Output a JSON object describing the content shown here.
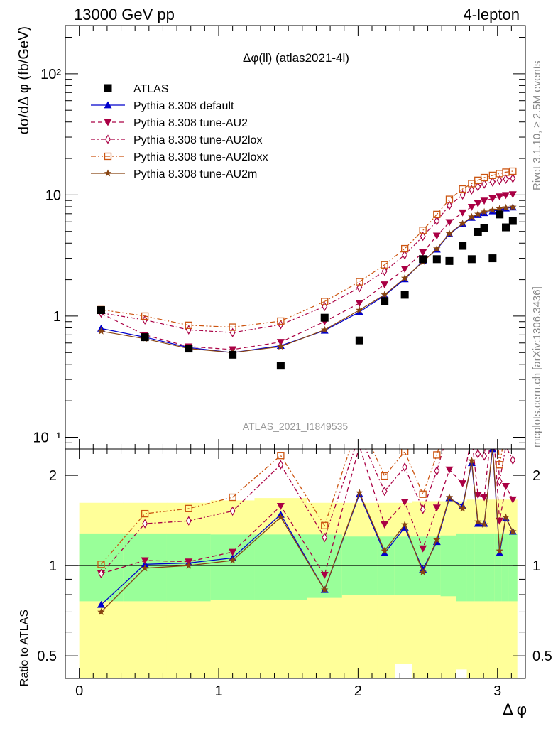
{
  "header": {
    "left": "13000 GeV pp",
    "right": "4-lepton"
  },
  "side_labels": {
    "rivet": "Rivet 3.1.10, ≥ 2.5M events",
    "mcplots": "mcplots.cern.ch [arXiv:1306.3436]"
  },
  "chart_data": [
    {
      "type": "line",
      "title": "Δφ(ll) (atlas2021-4l)",
      "watermark": "ATLAS_2021_I1849535",
      "ylabel": "dσ/dΔ φ (fb/GeV)",
      "xlabel": "Δ φ",
      "y_scale": "log",
      "xlim": [
        -0.1,
        3.2
      ],
      "ylim": [
        0.08,
        250
      ],
      "x_ticks": [
        0,
        1,
        2,
        3
      ],
      "y_tick_labels": [
        "10⁻¹",
        "1",
        "10",
        "10²"
      ],
      "y_tick_values": [
        0.1,
        1,
        10,
        100
      ],
      "legend_position": "top-left",
      "x": [
        0.157,
        0.471,
        0.785,
        1.1,
        1.445,
        1.76,
        2.01,
        2.19,
        2.335,
        2.465,
        2.565,
        2.655,
        2.75,
        2.815,
        2.86,
        2.905,
        2.965,
        3.015,
        3.06,
        3.11
      ],
      "data": {
        "name": "ATLAS",
        "values": [
          1.12,
          0.67,
          0.54,
          0.48,
          0.39,
          0.97,
          0.63,
          1.33,
          1.5,
          2.95,
          2.95,
          2.85,
          3.8,
          2.95,
          4.95,
          5.3,
          3.0,
          6.9,
          5.4,
          6.1
        ]
      },
      "series": [
        {
          "name": "Pythia 8.308 default",
          "color": "#0000cc",
          "marker": "triangle-up",
          "dash": "solid",
          "values": [
            0.79,
            0.67,
            0.55,
            0.5,
            0.57,
            0.76,
            1.08,
            1.48,
            2.02,
            2.85,
            3.55,
            4.75,
            5.75,
            6.5,
            6.85,
            7.1,
            7.35,
            7.55,
            7.75,
            7.9
          ]
        },
        {
          "name": "Pythia 8.308 tune-AU2",
          "color": "#aa0044",
          "marker": "triangle-down",
          "dash": "dashed",
          "values": [
            1.05,
            0.7,
            0.56,
            0.53,
            0.61,
            0.9,
            1.28,
            1.82,
            2.45,
            3.35,
            4.6,
            5.95,
            7.15,
            7.95,
            8.5,
            8.95,
            9.35,
            9.7,
            9.95,
            10.1
          ]
        },
        {
          "name": "Pythia 8.308 tune-AU2lox",
          "color": "#aa0044",
          "marker": "diamond-open",
          "dash": "dashdot",
          "values": [
            1.06,
            0.93,
            0.77,
            0.73,
            0.85,
            1.2,
            1.72,
            2.35,
            3.2,
            4.55,
            6.1,
            8.2,
            10.0,
            11.0,
            11.7,
            12.3,
            12.8,
            13.2,
            13.5,
            13.7
          ]
        },
        {
          "name": "Pythia 8.308 tune-AU2loxx",
          "color": "#cc5511",
          "marker": "square-open",
          "dash": "dashdotdot",
          "values": [
            1.13,
            1.0,
            0.84,
            0.81,
            0.91,
            1.32,
            1.92,
            2.65,
            3.6,
            5.1,
            6.9,
            9.2,
            11.2,
            12.4,
            13.2,
            13.9,
            14.5,
            15.0,
            15.4,
            15.7
          ]
        },
        {
          "name": "Pythia 8.308 tune-AU2m",
          "color": "#884411",
          "marker": "star",
          "dash": "solid",
          "values": [
            0.75,
            0.65,
            0.54,
            0.5,
            0.56,
            0.77,
            1.12,
            1.5,
            2.06,
            2.8,
            3.6,
            4.8,
            5.8,
            6.6,
            6.95,
            7.25,
            7.5,
            7.7,
            7.85,
            7.95
          ]
        }
      ]
    },
    {
      "type": "line",
      "ylabel": "Ratio to ATLAS",
      "xlabel": "Δ φ",
      "xlim": [
        -0.1,
        3.2
      ],
      "ylim": [
        0.42,
        2.45
      ],
      "y_scale": "log",
      "y_tick_labels": [
        "0.5",
        "1",
        "2"
      ],
      "y_tick_values": [
        0.5,
        1,
        2
      ],
      "reference_line": 1,
      "bin_edges": [
        0.0,
        0.314,
        0.628,
        0.942,
        1.257,
        1.634,
        1.885,
        2.136,
        2.262,
        2.388,
        2.513,
        2.592,
        2.702,
        2.78,
        2.835,
        2.88,
        2.93,
        2.98,
        3.03,
        3.08,
        3.14
      ],
      "bands": {
        "inner": {
          "color": "#99ff99",
          "low": [
            0.76,
            0.76,
            0.76,
            0.77,
            0.77,
            0.78,
            0.8,
            0.8,
            0.8,
            0.8,
            0.8,
            0.79,
            0.76,
            0.76,
            0.76,
            0.76,
            0.76,
            0.76,
            0.76,
            0.76
          ],
          "high": [
            1.28,
            1.28,
            1.28,
            1.27,
            1.27,
            1.27,
            1.25,
            1.25,
            1.25,
            1.25,
            1.25,
            1.26,
            1.28,
            1.28,
            1.28,
            1.28,
            1.28,
            1.28,
            1.28,
            1.28
          ]
        },
        "outer": {
          "color": "#ffff99",
          "low": [
            0.38,
            0.38,
            0.38,
            0.38,
            0.38,
            0.4,
            0.42,
            0.42,
            0.47,
            0.42,
            0.41,
            0.41,
            0.45,
            0.38,
            0.38,
            0.38,
            0.38,
            0.38,
            0.38,
            0.38
          ],
          "high": [
            1.62,
            1.62,
            1.62,
            1.65,
            1.68,
            1.62,
            1.62,
            1.62,
            1.62,
            1.64,
            1.64,
            1.64,
            1.64,
            1.66,
            1.66,
            1.66,
            1.66,
            1.66,
            1.66,
            1.66
          ]
        }
      },
      "ratios": [
        {
          "name": "Pythia 8.308 default",
          "values": [
            0.74,
            1.01,
            1.02,
            1.06,
            1.48,
            0.83,
            1.73,
            1.1,
            1.34,
            0.97,
            1.2,
            1.68,
            1.58,
            2.2,
            1.38,
            1.38,
            2.45,
            1.1,
            1.44,
            1.3
          ]
        },
        {
          "name": "Pythia 8.308 tune-AU2",
          "values": [
            0.94,
            1.04,
            1.03,
            1.11,
            1.58,
            0.93,
            2.5,
            1.37,
            1.63,
            1.14,
            1.56,
            2.09,
            1.88,
            2.7,
            1.72,
            1.69,
            3.1,
            1.41,
            1.84,
            1.66
          ]
        },
        {
          "name": "Pythia 8.308 tune-AU2lox",
          "values": [
            0.94,
            1.38,
            1.41,
            1.52,
            2.17,
            1.24,
            2.73,
            1.77,
            2.13,
            1.54,
            2.07,
            2.88,
            2.63,
            3.73,
            2.36,
            2.32,
            4.27,
            1.91,
            2.5,
            2.25
          ]
        },
        {
          "name": "Pythia 8.308 tune-AU2loxx",
          "values": [
            1.01,
            1.49,
            1.55,
            1.69,
            2.33,
            1.36,
            3.05,
            1.99,
            2.4,
            1.73,
            2.34,
            3.23,
            2.95,
            4.2,
            2.67,
            2.62,
            4.83,
            2.17,
            2.85,
            2.57
          ]
        },
        {
          "name": "Pythia 8.308 tune-AU2m",
          "values": [
            0.7,
            0.98,
            1.0,
            1.04,
            1.45,
            0.83,
            1.75,
            1.12,
            1.37,
            0.95,
            1.22,
            1.69,
            1.55,
            2.24,
            1.4,
            1.37,
            2.5,
            1.12,
            1.45,
            1.3
          ]
        }
      ]
    }
  ]
}
